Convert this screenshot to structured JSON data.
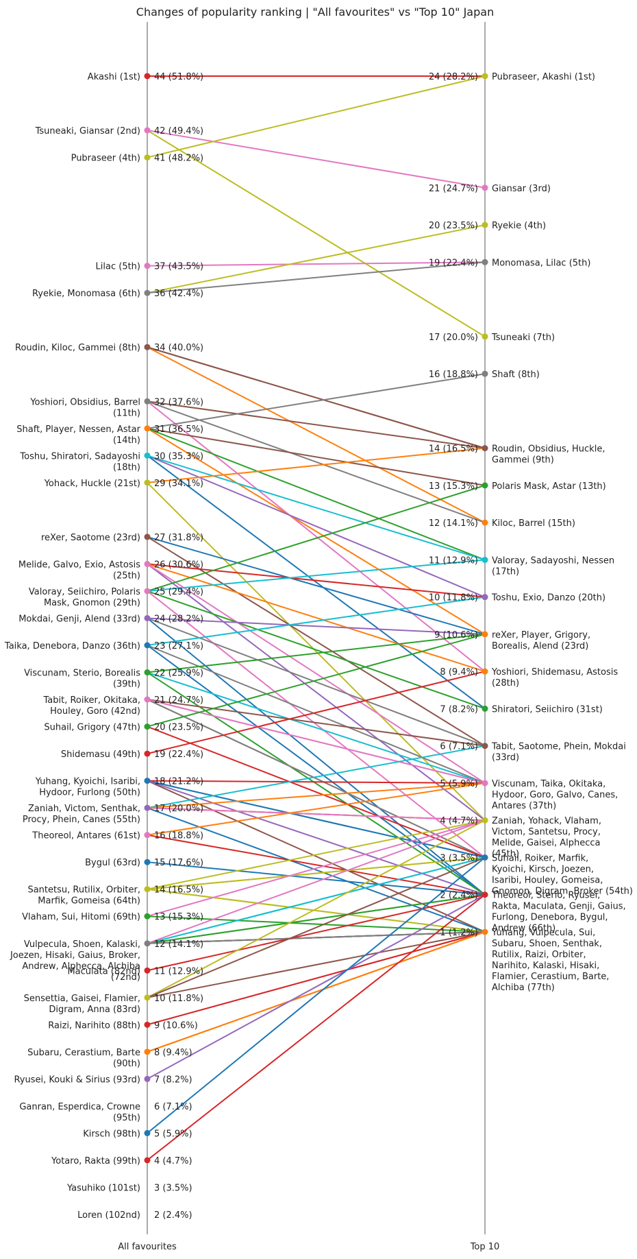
{
  "chart_data": {
    "type": "slope",
    "title": "Changes of popularity ranking | \"All favourites\" vs \"Top 10\" Japan",
    "left_axis_label": "All favourites",
    "right_axis_label": "Top 10",
    "palette": [
      "#1f77b4",
      "#ff7f0e",
      "#2ca02c",
      "#d62728",
      "#9467bd",
      "#8c564b",
      "#e377c2",
      "#7f7f7f",
      "#bcbd22",
      "#17becf"
    ],
    "left_groups": [
      {
        "value": 44,
        "pct": "51.8%",
        "names": "Akashi (1st)",
        "color": "#d62728"
      },
      {
        "value": 42,
        "pct": "49.4%",
        "names": "Tsuneaki, Giansar (2nd)",
        "color": "#e377c2"
      },
      {
        "value": 41,
        "pct": "48.2%",
        "names": "Pubraseer (4th)",
        "color": "#bcbd22"
      },
      {
        "value": 37,
        "pct": "43.5%",
        "names": "Lilac (5th)",
        "color": "#e377c2"
      },
      {
        "value": 36,
        "pct": "42.4%",
        "names": "Ryekie, Monomasa (6th)",
        "color": "#7f7f7f"
      },
      {
        "value": 34,
        "pct": "40.0%",
        "names": "Roudin, Kiloc, Gammei (8th)",
        "color": "#8c564b"
      },
      {
        "value": 32,
        "pct": "37.6%",
        "names": "Yoshiori, Obsidius, Barrel|(11th)",
        "color": "#7f7f7f"
      },
      {
        "value": 31,
        "pct": "36.5%",
        "names": "Shaft, Player, Nessen, Astar|(14th)",
        "color": "#ff7f0e"
      },
      {
        "value": 30,
        "pct": "35.3%",
        "names": "Toshu, Shiratori, Sadayoshi|(18th)",
        "color": "#17becf"
      },
      {
        "value": 29,
        "pct": "34.1%",
        "names": "Yohack, Huckle (21st)",
        "color": "#bcbd22"
      },
      {
        "value": 27,
        "pct": "31.8%",
        "names": "reXer, Saotome (23rd)",
        "color": "#8c564b"
      },
      {
        "value": 26,
        "pct": "30.6%",
        "names": "Melide, Galvo, Exio, Astosis|(25th)",
        "color": "#e377c2"
      },
      {
        "value": 25,
        "pct": "29.4%",
        "names": "Valoray, Seiichiro, Polaris|Mask, Gnomon (29th)",
        "color": "#e377c2"
      },
      {
        "value": 24,
        "pct": "28.2%",
        "names": "Mokdai, Genji, Alend (33rd)",
        "color": "#9467bd"
      },
      {
        "value": 23,
        "pct": "27.1%",
        "names": "Taika, Denebora, Danzo (36th)",
        "color": "#1f77b4"
      },
      {
        "value": 22,
        "pct": "25.9%",
        "names": "Viscunam, Sterio, Borealis|(39th)",
        "color": "#2ca02c"
      },
      {
        "value": 21,
        "pct": "24.7%",
        "names": "Tabit, Roiker, Okitaka,|Houley, Goro (42nd)",
        "color": "#e377c2"
      },
      {
        "value": 20,
        "pct": "23.5%",
        "names": "Suhail, Grigory (47th)",
        "color": "#2ca02c"
      },
      {
        "value": 19,
        "pct": "22.4%",
        "names": "Shidemasu (49th)",
        "color": "#d62728"
      },
      {
        "value": 18,
        "pct": "21.2%",
        "names": "Yuhang, Kyoichi, Isaribi,|Hydoor, Furlong (50th)",
        "color": "#1f77b4"
      },
      {
        "value": 17,
        "pct": "20.0%",
        "names": "Zaniah, Victom, Senthak,|Procy, Phein, Canes (55th)",
        "color": "#9467bd"
      },
      {
        "value": 16,
        "pct": "18.8%",
        "names": "Theoreol, Antares (61st)",
        "color": "#e377c2"
      },
      {
        "value": 15,
        "pct": "17.6%",
        "names": "Bygul (63rd)",
        "color": "#1f77b4"
      },
      {
        "value": 14,
        "pct": "16.5%",
        "names": "Santetsu, Rutilix, Orbiter,|Marfik, Gomeisa (64th)",
        "color": "#bcbd22"
      },
      {
        "value": 13,
        "pct": "15.3%",
        "names": "Vlaham, Sui, Hitomi (69th)",
        "color": "#2ca02c"
      },
      {
        "value": 12,
        "pct": "14.1%",
        "names": "Vulpecula, Shoen, Kalaski,|Joezen, Hisaki, Gaius, Broker,|Andrew, Alphecca, Alchiba|(72nd)",
        "color": "#7f7f7f"
      },
      {
        "value": 11,
        "pct": "12.9%",
        "names": "Maculata (82nd)",
        "color": "#d62728"
      },
      {
        "value": 10,
        "pct": "11.8%",
        "names": "Sensettia, Gaisei, Flamier,|Digram, Anna (83rd)",
        "color": "#bcbd22"
      },
      {
        "value": 9,
        "pct": "10.6%",
        "names": "Raizi, Narihito (88th)",
        "color": "#d62728"
      },
      {
        "value": 8,
        "pct": "9.4%",
        "names": "Subaru, Cerastium, Barte|(90th)",
        "color": "#ff7f0e"
      },
      {
        "value": 7,
        "pct": "8.2%",
        "names": "Ryusei, Kouki & Sirius (93rd)",
        "color": "#9467bd"
      },
      {
        "value": 6,
        "pct": "7.1%",
        "names": "Ganran, Esperdica, Crowne|(95th)",
        "color": null
      },
      {
        "value": 5,
        "pct": "5.9%",
        "names": "Kirsch (98th)",
        "color": "#1f77b4"
      },
      {
        "value": 4,
        "pct": "4.7%",
        "names": "Yotaro, Rakta (99th)",
        "color": "#d62728"
      },
      {
        "value": 3,
        "pct": "3.5%",
        "names": "Yasuhiko (101st)",
        "color": null
      },
      {
        "value": 2,
        "pct": "2.4%",
        "names": "Loren (102nd)",
        "color": null
      }
    ],
    "right_groups": [
      {
        "value": 24,
        "pct": "28.2%",
        "names": "Pubraseer, Akashi (1st)",
        "color": "#bcbd22"
      },
      {
        "value": 21,
        "pct": "24.7%",
        "names": "Giansar (3rd)",
        "color": "#e377c2"
      },
      {
        "value": 20,
        "pct": "23.5%",
        "names": "Ryekie (4th)",
        "color": "#bcbd22"
      },
      {
        "value": 19,
        "pct": "22.4%",
        "names": "Monomasa, Lilac (5th)",
        "color": "#7f7f7f"
      },
      {
        "value": 17,
        "pct": "20.0%",
        "names": "Tsuneaki (7th)",
        "color": "#bcbd22"
      },
      {
        "value": 16,
        "pct": "18.8%",
        "names": "Shaft (8th)",
        "color": "#7f7f7f"
      },
      {
        "value": 14,
        "pct": "16.5%",
        "names": "Roudin, Obsidius, Huckle,|Gammei (9th)",
        "color": "#8c564b"
      },
      {
        "value": 13,
        "pct": "15.3%",
        "names": "Polaris Mask, Astar (13th)",
        "color": "#2ca02c"
      },
      {
        "value": 12,
        "pct": "14.1%",
        "names": "Kiloc, Barrel (15th)",
        "color": "#ff7f0e"
      },
      {
        "value": 11,
        "pct": "12.9%",
        "names": "Valoray, Sadayoshi, Nessen|(17th)",
        "color": "#17becf"
      },
      {
        "value": 10,
        "pct": "11.8%",
        "names": "Toshu, Exio, Danzo (20th)",
        "color": "#9467bd"
      },
      {
        "value": 9,
        "pct": "10.6%",
        "names": "reXer, Player, Grigory,|Borealis, Alend (23rd)",
        "color": "#ff7f0e"
      },
      {
        "value": 8,
        "pct": "9.4%",
        "names": "Yoshiori, Shidemasu, Astosis|(28th)",
        "color": "#ff7f0e"
      },
      {
        "value": 7,
        "pct": "8.2%",
        "names": "Shiratori, Seiichiro (31st)",
        "color": "#2ca02c"
      },
      {
        "value": 6,
        "pct": "7.1%",
        "names": "Tabit, Saotome, Phein, Mokdai|(33rd)",
        "color": "#8c564b"
      },
      {
        "value": 5,
        "pct": "5.9%",
        "names": "Viscunam, Taika, Okitaka,|Hydoor, Goro, Galvo, Canes,|Antares (37th)",
        "color": "#e377c2"
      },
      {
        "value": 4,
        "pct": "4.7%",
        "names": "Zaniah, Yohack, Vlaham,|Victom, Santetsu, Procy,|Melide, Gaisei, Alphecca|(45th)",
        "color": "#bcbd22"
      },
      {
        "value": 3,
        "pct": "3.5%",
        "names": "Suhail, Roiker, Marfik,|Kyoichi, Kirsch, Joezen,|Isaribi, Houley, Gomeisa,|Gnomon, Digram, Broker (54th)",
        "color": "#1f77b4"
      },
      {
        "value": 2,
        "pct": "2.4%",
        "names": "Theoreol, Sterio, Ryusei,|Rakta, Maculata, Genji, Gaius,|Furlong, Denebora, Bygul,|Andrew (66th)",
        "color": "#d62728"
      },
      {
        "value": 1,
        "pct": "1.2%",
        "names": "Yuhang, Vulpecula, Sui,|Subaru, Shoen, Senthak,|Rutilix, Raizi, Orbiter,|Narihito, Kalaski, Hisaki,|Flamier, Cerastium, Barte,|Alchiba (77th)",
        "color": "#ff7f0e"
      }
    ],
    "links": [
      {
        "name": "Akashi",
        "from": 44,
        "to": 24,
        "color": "#d62728"
      },
      {
        "name": "Tsuneaki",
        "from": 42,
        "to": 17,
        "color": "#bcbd22"
      },
      {
        "name": "Giansar",
        "from": 42,
        "to": 21,
        "color": "#e377c2"
      },
      {
        "name": "Pubraseer",
        "from": 41,
        "to": 24,
        "color": "#bcbd22"
      },
      {
        "name": "Lilac",
        "from": 37,
        "to": 19,
        "color": "#e377c2"
      },
      {
        "name": "Ryekie",
        "from": 36,
        "to": 20,
        "color": "#bcbd22"
      },
      {
        "name": "Monomasa",
        "from": 36,
        "to": 19,
        "color": "#7f7f7f"
      },
      {
        "name": "Roudin",
        "from": 34,
        "to": 14,
        "color": "#8c564b"
      },
      {
        "name": "Kiloc",
        "from": 34,
        "to": 12,
        "color": "#ff7f0e"
      },
      {
        "name": "Gammei",
        "from": 34,
        "to": 14,
        "color": "#8c564b"
      },
      {
        "name": "Yoshiori",
        "from": 32,
        "to": 8,
        "color": "#e377c2"
      },
      {
        "name": "Obsidius",
        "from": 32,
        "to": 14,
        "color": "#8c564b"
      },
      {
        "name": "Barrel",
        "from": 32,
        "to": 12,
        "color": "#7f7f7f"
      },
      {
        "name": "Shaft",
        "from": 31,
        "to": 16,
        "color": "#7f7f7f"
      },
      {
        "name": "Player",
        "from": 31,
        "to": 9,
        "color": "#ff7f0e"
      },
      {
        "name": "Nessen",
        "from": 31,
        "to": 11,
        "color": "#2ca02c"
      },
      {
        "name": "Astar",
        "from": 31,
        "to": 13,
        "color": "#8c564b"
      },
      {
        "name": "Toshu",
        "from": 30,
        "to": 10,
        "color": "#9467bd"
      },
      {
        "name": "Shiratori",
        "from": 30,
        "to": 7,
        "color": "#1f77b4"
      },
      {
        "name": "Sadayoshi",
        "from": 30,
        "to": 11,
        "color": "#17becf"
      },
      {
        "name": "Yohack",
        "from": 29,
        "to": 4,
        "color": "#bcbd22"
      },
      {
        "name": "Huckle",
        "from": 29,
        "to": 14,
        "color": "#ff7f0e"
      },
      {
        "name": "reXer",
        "from": 27,
        "to": 9,
        "color": "#1f77b4"
      },
      {
        "name": "Saotome",
        "from": 27,
        "to": 6,
        "color": "#8c564b"
      },
      {
        "name": "Melide",
        "from": 26,
        "to": 4,
        "color": "#9467bd"
      },
      {
        "name": "Galvo",
        "from": 26,
        "to": 5,
        "color": "#e377c2"
      },
      {
        "name": "Exio",
        "from": 26,
        "to": 10,
        "color": "#d62728"
      },
      {
        "name": "Astosis",
        "from": 26,
        "to": 8,
        "color": "#ff7f0e"
      },
      {
        "name": "Valoray",
        "from": 25,
        "to": 11,
        "color": "#17becf"
      },
      {
        "name": "Seiichiro",
        "from": 25,
        "to": 7,
        "color": "#2ca02c"
      },
      {
        "name": "Polaris Mask",
        "from": 25,
        "to": 13,
        "color": "#2ca02c"
      },
      {
        "name": "Gnomon",
        "from": 25,
        "to": 3,
        "color": "#e377c2"
      },
      {
        "name": "Mokdai",
        "from": 24,
        "to": 6,
        "color": "#7f7f7f"
      },
      {
        "name": "Genji",
        "from": 24,
        "to": 2,
        "color": "#1f77b4"
      },
      {
        "name": "Alend",
        "from": 24,
        "to": 9,
        "color": "#9467bd"
      },
      {
        "name": "Taika",
        "from": 23,
        "to": 5,
        "color": "#7f7f7f"
      },
      {
        "name": "Denebora",
        "from": 23,
        "to": 2,
        "color": "#1f77b4"
      },
      {
        "name": "Danzo",
        "from": 23,
        "to": 10,
        "color": "#17becf"
      },
      {
        "name": "Viscunam",
        "from": 22,
        "to": 5,
        "color": "#17becf"
      },
      {
        "name": "Sterio",
        "from": 22,
        "to": 2,
        "color": "#2ca02c"
      },
      {
        "name": "Borealis",
        "from": 22,
        "to": 9,
        "color": "#2ca02c"
      },
      {
        "name": "Tabit",
        "from": 21,
        "to": 6,
        "color": "#8c564b"
      },
      {
        "name": "Roiker",
        "from": 21,
        "to": 3,
        "color": "#7f7f7f"
      },
      {
        "name": "Okitaka",
        "from": 21,
        "to": 5,
        "color": "#e377c2"
      },
      {
        "name": "Houley",
        "from": 21,
        "to": 3,
        "color": "#7f7f7f"
      },
      {
        "name": "Goro",
        "from": 21,
        "to": 5,
        "color": "#e377c2"
      },
      {
        "name": "Suhail",
        "from": 20,
        "to": 3,
        "color": "#d62728"
      },
      {
        "name": "Grigory",
        "from": 20,
        "to": 9,
        "color": "#2ca02c"
      },
      {
        "name": "Shidemasu",
        "from": 19,
        "to": 8,
        "color": "#d62728"
      },
      {
        "name": "Yuhang",
        "from": 18,
        "to": 1,
        "color": "#8c564b"
      },
      {
        "name": "Kyoichi",
        "from": 18,
        "to": 3,
        "color": "#1f77b4"
      },
      {
        "name": "Isaribi",
        "from": 18,
        "to": 3,
        "color": "#1f77b4"
      },
      {
        "name": "Hydoor",
        "from": 18,
        "to": 5,
        "color": "#d62728"
      },
      {
        "name": "Furlong",
        "from": 18,
        "to": 2,
        "color": "#9467bd"
      },
      {
        "name": "Zaniah",
        "from": 17,
        "to": 4,
        "color": "#9467bd"
      },
      {
        "name": "Victom",
        "from": 17,
        "to": 4,
        "color": "#ff7f0e"
      },
      {
        "name": "Senthak",
        "from": 17,
        "to": 1,
        "color": "#1f77b4"
      },
      {
        "name": "Procy",
        "from": 17,
        "to": 4,
        "color": "#e377c2"
      },
      {
        "name": "Phein",
        "from": 17,
        "to": 6,
        "color": "#17becf"
      },
      {
        "name": "Canes",
        "from": 17,
        "to": 5,
        "color": "#ff7f0e"
      },
      {
        "name": "Theoreol",
        "from": 16,
        "to": 2,
        "color": "#d62728"
      },
      {
        "name": "Antares",
        "from": 16,
        "to": 5,
        "color": "#ff7f0e"
      },
      {
        "name": "Bygul",
        "from": 15,
        "to": 2,
        "color": "#1f77b4"
      },
      {
        "name": "Santetsu",
        "from": 14,
        "to": 4,
        "color": "#bcbd22"
      },
      {
        "name": "Rutilix",
        "from": 14,
        "to": 1,
        "color": "#bcbd22"
      },
      {
        "name": "Orbiter",
        "from": 14,
        "to": 1,
        "color": "#bcbd22"
      },
      {
        "name": "Marfik",
        "from": 14,
        "to": 3,
        "color": "#bcbd22"
      },
      {
        "name": "Gomeisa",
        "from": 14,
        "to": 3,
        "color": "#bcbd22"
      },
      {
        "name": "Vlaham",
        "from": 13,
        "to": 4,
        "color": "#e377c2"
      },
      {
        "name": "Sui",
        "from": 13,
        "to": 1,
        "color": "#2ca02c"
      },
      {
        "name": "Vulpecula",
        "from": 12,
        "to": 1,
        "color": "#7f7f7f"
      },
      {
        "name": "Shoen",
        "from": 12,
        "to": 1,
        "color": "#7f7f7f"
      },
      {
        "name": "Kalaski",
        "from": 12,
        "to": 1,
        "color": "#7f7f7f"
      },
      {
        "name": "Joezen",
        "from": 12,
        "to": 3,
        "color": "#17becf"
      },
      {
        "name": "Hisaki",
        "from": 12,
        "to": 1,
        "color": "#7f7f7f"
      },
      {
        "name": "Gaius",
        "from": 12,
        "to": 2,
        "color": "#2ca02c"
      },
      {
        "name": "Broker",
        "from": 12,
        "to": 3,
        "color": "#17becf"
      },
      {
        "name": "Andrew",
        "from": 12,
        "to": 2,
        "color": "#2ca02c"
      },
      {
        "name": "Alphecca",
        "from": 12,
        "to": 4,
        "color": "#e377c2"
      },
      {
        "name": "Alchiba",
        "from": 12,
        "to": 1,
        "color": "#7f7f7f"
      },
      {
        "name": "Maculata",
        "from": 11,
        "to": 2,
        "color": "#d62728"
      },
      {
        "name": "Gaisei",
        "from": 10,
        "to": 4,
        "color": "#bcbd22"
      },
      {
        "name": "Flamier",
        "from": 10,
        "to": 1,
        "color": "#8c564b"
      },
      {
        "name": "Digram",
        "from": 10,
        "to": 3,
        "color": "#8c564b"
      },
      {
        "name": "Raizi",
        "from": 9,
        "to": 1,
        "color": "#d62728"
      },
      {
        "name": "Narihito",
        "from": 9,
        "to": 1,
        "color": "#d62728"
      },
      {
        "name": "Subaru",
        "from": 8,
        "to": 1,
        "color": "#ff7f0e"
      },
      {
        "name": "Cerastium",
        "from": 8,
        "to": 1,
        "color": "#ff7f0e"
      },
      {
        "name": "Barte",
        "from": 8,
        "to": 1,
        "color": "#ff7f0e"
      },
      {
        "name": "Ryusei",
        "from": 7,
        "to": 2,
        "color": "#9467bd"
      },
      {
        "name": "Kirsch",
        "from": 5,
        "to": 3,
        "color": "#1f77b4"
      },
      {
        "name": "Rakta",
        "from": 4,
        "to": 2,
        "color": "#d62728"
      }
    ]
  }
}
